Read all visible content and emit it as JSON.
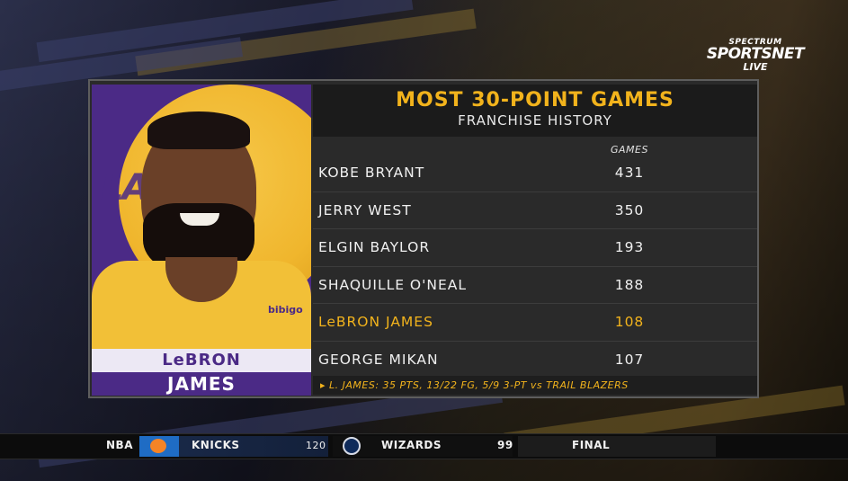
{
  "network": {
    "top": "SPECTRUM",
    "main": "SPORTSNET",
    "live": "LIVE"
  },
  "graphic": {
    "title": "MOST 30-POINT GAMES",
    "subtitle": "FRANCHISE HISTORY",
    "column_header": "GAMES",
    "rows": [
      {
        "name": "KOBE BRYANT",
        "games": "431"
      },
      {
        "name": "JERRY WEST",
        "games": "350"
      },
      {
        "name": "ELGIN BAYLOR",
        "games": "193"
      },
      {
        "name": "SHAQUILLE O'NEAL",
        "games": "188"
      },
      {
        "name": "LeBRON JAMES",
        "games": "108"
      },
      {
        "name": "GEORGE MIKAN",
        "games": "107"
      }
    ],
    "note": "▸ L. JAMES: 35 PTS, 13/22 FG, 5/9 3-PT vs TRAIL BLAZERS"
  },
  "player": {
    "first_name": "LeBRON",
    "last_name": "JAMES",
    "jersey_text": "bibigo",
    "bg_text": "LAKERS"
  },
  "ticker": {
    "league": "NBA",
    "away_team": "KNICKS",
    "away_score": "120",
    "home_team": "WIZARDS",
    "home_score": "99",
    "status": "FINAL"
  },
  "colors": {
    "gold": "#f2b31c",
    "purple": "#4b2a86",
    "panel": "#2a2a2a"
  }
}
